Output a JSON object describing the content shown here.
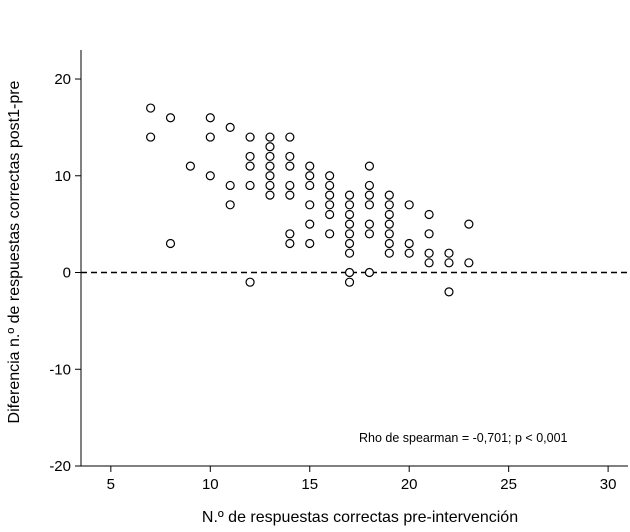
{
  "chart_data": {
    "type": "scatter",
    "xlabel": "N.º de respuestas correctas pre-intervención",
    "ylabel": "Diferencia n.º de respuestas correctas post1-pre",
    "xlim": [
      3.5,
      31
    ],
    "ylim": [
      -20,
      23
    ],
    "xticks": [
      5,
      10,
      15,
      20,
      25,
      30
    ],
    "yticks": [
      -20,
      -10,
      0,
      10,
      20
    ],
    "reference_line": {
      "y": 0,
      "style": "dashed"
    },
    "annotation": "Rho de spearman = -0,701; p < 0,001",
    "grid": false,
    "legend": "none",
    "points": [
      {
        "x": 7,
        "y": 17
      },
      {
        "x": 7,
        "y": 14
      },
      {
        "x": 8,
        "y": 16
      },
      {
        "x": 8,
        "y": 3
      },
      {
        "x": 9,
        "y": 11
      },
      {
        "x": 10,
        "y": 16
      },
      {
        "x": 10,
        "y": 14
      },
      {
        "x": 10,
        "y": 10
      },
      {
        "x": 11,
        "y": 15
      },
      {
        "x": 11,
        "y": 9
      },
      {
        "x": 11,
        "y": 7
      },
      {
        "x": 12,
        "y": 14
      },
      {
        "x": 12,
        "y": 12
      },
      {
        "x": 12,
        "y": 11
      },
      {
        "x": 12,
        "y": 9
      },
      {
        "x": 12,
        "y": -1
      },
      {
        "x": 13,
        "y": 14
      },
      {
        "x": 13,
        "y": 13
      },
      {
        "x": 13,
        "y": 12
      },
      {
        "x": 13,
        "y": 11
      },
      {
        "x": 13,
        "y": 10
      },
      {
        "x": 13,
        "y": 9
      },
      {
        "x": 13,
        "y": 8
      },
      {
        "x": 14,
        "y": 14
      },
      {
        "x": 14,
        "y": 12
      },
      {
        "x": 14,
        "y": 11
      },
      {
        "x": 14,
        "y": 9
      },
      {
        "x": 14,
        "y": 8
      },
      {
        "x": 14,
        "y": 4
      },
      {
        "x": 14,
        "y": 3
      },
      {
        "x": 15,
        "y": 11
      },
      {
        "x": 15,
        "y": 10
      },
      {
        "x": 15,
        "y": 9
      },
      {
        "x": 15,
        "y": 7
      },
      {
        "x": 15,
        "y": 5
      },
      {
        "x": 15,
        "y": 3
      },
      {
        "x": 16,
        "y": 10
      },
      {
        "x": 16,
        "y": 9
      },
      {
        "x": 16,
        "y": 8
      },
      {
        "x": 16,
        "y": 7
      },
      {
        "x": 16,
        "y": 6
      },
      {
        "x": 16,
        "y": 4
      },
      {
        "x": 17,
        "y": 8
      },
      {
        "x": 17,
        "y": 7
      },
      {
        "x": 17,
        "y": 6
      },
      {
        "x": 17,
        "y": 5
      },
      {
        "x": 17,
        "y": 4
      },
      {
        "x": 17,
        "y": 3
      },
      {
        "x": 17,
        "y": 2
      },
      {
        "x": 17,
        "y": 0
      },
      {
        "x": 17,
        "y": -1
      },
      {
        "x": 18,
        "y": 11
      },
      {
        "x": 18,
        "y": 9
      },
      {
        "x": 18,
        "y": 8
      },
      {
        "x": 18,
        "y": 7
      },
      {
        "x": 18,
        "y": 5
      },
      {
        "x": 18,
        "y": 4
      },
      {
        "x": 18,
        "y": 0
      },
      {
        "x": 19,
        "y": 8
      },
      {
        "x": 19,
        "y": 7
      },
      {
        "x": 19,
        "y": 6
      },
      {
        "x": 19,
        "y": 5
      },
      {
        "x": 19,
        "y": 4
      },
      {
        "x": 19,
        "y": 3
      },
      {
        "x": 19,
        "y": 2
      },
      {
        "x": 20,
        "y": 7
      },
      {
        "x": 20,
        "y": 3
      },
      {
        "x": 20,
        "y": 2
      },
      {
        "x": 21,
        "y": 6
      },
      {
        "x": 21,
        "y": 4
      },
      {
        "x": 21,
        "y": 2
      },
      {
        "x": 21,
        "y": 1
      },
      {
        "x": 22,
        "y": 2
      },
      {
        "x": 22,
        "y": 1
      },
      {
        "x": 22,
        "y": -2
      },
      {
        "x": 23,
        "y": 5
      },
      {
        "x": 23,
        "y": 1
      }
    ]
  }
}
